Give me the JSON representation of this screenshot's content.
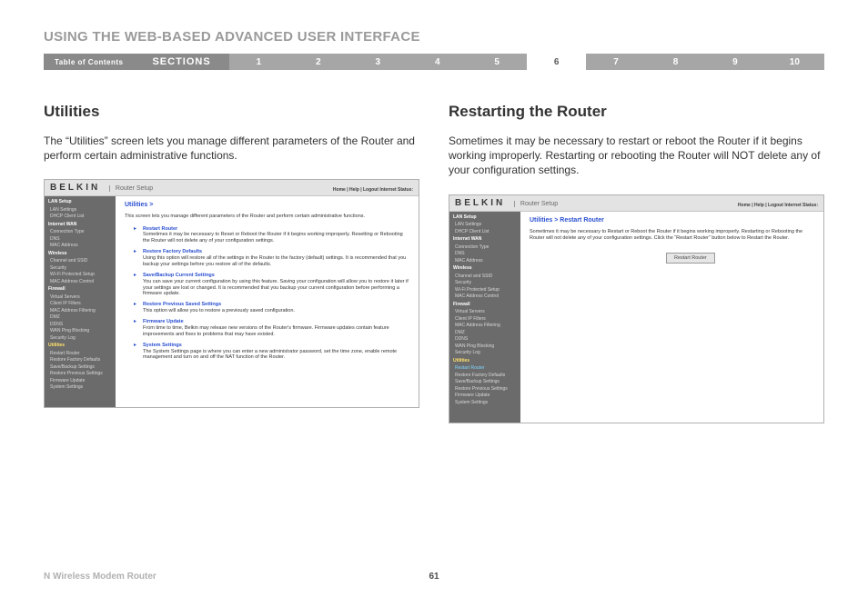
{
  "page_title": "USING THE WEB-BASED ADVANCED USER INTERFACE",
  "nav": {
    "toc": "Table of Contents",
    "sections_label": "SECTIONS",
    "numbers": [
      "1",
      "2",
      "3",
      "4",
      "5",
      "6",
      "7",
      "8",
      "9",
      "10"
    ],
    "active_index": 5
  },
  "left": {
    "heading": "Utilities",
    "desc": "The “Utilities” screen lets you manage different parameters of the Router and perform certain administrative functions.",
    "screenshot": {
      "brand": "BELKIN",
      "brand_sub": "Router Setup",
      "header_links": "Home | Help | Logout   Internet Status:",
      "crumb": "Utilities  >",
      "intro": "This screen lets you manage different parameters of the Router and perform certain administrative functions.",
      "items": [
        {
          "t": "Restart Router",
          "d": "Sometimes it may be necessary to Reset or Reboot the Router if it begins working improperly. Resetting or Rebooting the Router will not delete any of your configuration settings."
        },
        {
          "t": "Restore Factory Defaults",
          "d": "Using this option will restore all of the settings in the Router to the factory (default) settings. It is recommended that you backup your settings before you restore all of the defaults."
        },
        {
          "t": "Save/Backup Current Settings",
          "d": "You can save your current configuration by using this feature. Saving your configuration will allow you to restore it later if your settings are lost or changed. It is recommended that you backup your current configuration before performing a firmware update."
        },
        {
          "t": "Restore Previous Saved Settings",
          "d": "This option will allow you to restore a previously saved configuration."
        },
        {
          "t": "Firmware Update",
          "d": "From time to time, Belkin may release new versions of the Router's firmware. Firmware updates contain feature improvements and fixes to problems that may have existed."
        },
        {
          "t": "System Settings",
          "d": "The System Settings page is where you can enter a new administrator password, set the time zone, enable remote management and turn on and off the NAT function of the Router."
        }
      ],
      "sidebar": [
        {
          "c": "sh",
          "t": "LAN Setup"
        },
        {
          "c": "si",
          "t": "LAN Settings"
        },
        {
          "c": "si",
          "t": "DHCP Client List"
        },
        {
          "c": "sh",
          "t": "Internet WAN"
        },
        {
          "c": "si",
          "t": "Connection Type"
        },
        {
          "c": "si",
          "t": "DNS"
        },
        {
          "c": "si",
          "t": "MAC Address"
        },
        {
          "c": "sh",
          "t": "Wireless"
        },
        {
          "c": "si",
          "t": "Channel and SSID"
        },
        {
          "c": "si",
          "t": "Security"
        },
        {
          "c": "si",
          "t": "Wi-Fi Protected Setup"
        },
        {
          "c": "si",
          "t": "MAC Address Control"
        },
        {
          "c": "sh",
          "t": "Firewall"
        },
        {
          "c": "si",
          "t": "Virtual Servers"
        },
        {
          "c": "si",
          "t": "Client IP Filters"
        },
        {
          "c": "si",
          "t": "MAC Address Filtering"
        },
        {
          "c": "si",
          "t": "DMZ"
        },
        {
          "c": "si",
          "t": "DDNS"
        },
        {
          "c": "si",
          "t": "WAN Ping Blocking"
        },
        {
          "c": "si",
          "t": "Security Log"
        },
        {
          "c": "sh act",
          "t": "Utilities"
        },
        {
          "c": "si",
          "t": "Restart Router"
        },
        {
          "c": "si",
          "t": "Restore Factory Defaults"
        },
        {
          "c": "si",
          "t": "Save/Backup Settings"
        },
        {
          "c": "si",
          "t": "Restore Previous Settings"
        },
        {
          "c": "si",
          "t": "Firmware Update"
        },
        {
          "c": "si",
          "t": "System Settings"
        }
      ]
    }
  },
  "right": {
    "heading": "Restarting the Router",
    "desc": "Sometimes it may be necessary to restart or reboot the Router if it begins working improperly. Restarting or rebooting the Router will NOT delete any of your configuration settings.",
    "screenshot": {
      "brand": "BELKIN",
      "brand_sub": "Router Setup",
      "header_links": "Home | Help | Logout   Internet Status:",
      "crumb": "Utilities > Restart Router",
      "intro": "Sometimes it may be necessary to Restart or Reboot the Router if it begins working improperly. Restarting or Rebooting the Router will not delete any of your configuration settings. Click the “Restart Router” button below to Restart the Router.",
      "button": "Restart Router",
      "sidebar": [
        {
          "c": "sh",
          "t": "LAN Setup"
        },
        {
          "c": "si",
          "t": "LAN Settings"
        },
        {
          "c": "si",
          "t": "DHCP Client List"
        },
        {
          "c": "sh",
          "t": "Internet WAN"
        },
        {
          "c": "si",
          "t": "Connection Type"
        },
        {
          "c": "si",
          "t": "DNS"
        },
        {
          "c": "si",
          "t": "MAC Address"
        },
        {
          "c": "sh",
          "t": "Wireless"
        },
        {
          "c": "si",
          "t": "Channel and SSID"
        },
        {
          "c": "si",
          "t": "Security"
        },
        {
          "c": "si",
          "t": "Wi-Fi Protected Setup"
        },
        {
          "c": "si",
          "t": "MAC Address Control"
        },
        {
          "c": "sh",
          "t": "Firewall"
        },
        {
          "c": "si",
          "t": "Virtual Servers"
        },
        {
          "c": "si",
          "t": "Client IP Filters"
        },
        {
          "c": "si",
          "t": "MAC Address Filtering"
        },
        {
          "c": "si",
          "t": "DMZ"
        },
        {
          "c": "si",
          "t": "DDNS"
        },
        {
          "c": "si",
          "t": "WAN Ping Blocking"
        },
        {
          "c": "si",
          "t": "Security Log"
        },
        {
          "c": "sh act",
          "t": "Utilities"
        },
        {
          "c": "si act2",
          "t": "Restart Router"
        },
        {
          "c": "si",
          "t": "Restore Factory Defaults"
        },
        {
          "c": "si",
          "t": "Save/Backup Settings"
        },
        {
          "c": "si",
          "t": "Restore Previous Settings"
        },
        {
          "c": "si",
          "t": "Firmware Update"
        },
        {
          "c": "si",
          "t": "System Settings"
        }
      ]
    }
  },
  "footer": {
    "product": "N Wireless Modem Router",
    "page_number": "61"
  },
  "colors": {
    "nav_bg": "#a6a6a6",
    "nav_dark": "#8a8a8a",
    "sidebar_bg": "#6b6b6b",
    "link": "#2a4fd0",
    "title_gray": "#9a9a9a"
  }
}
